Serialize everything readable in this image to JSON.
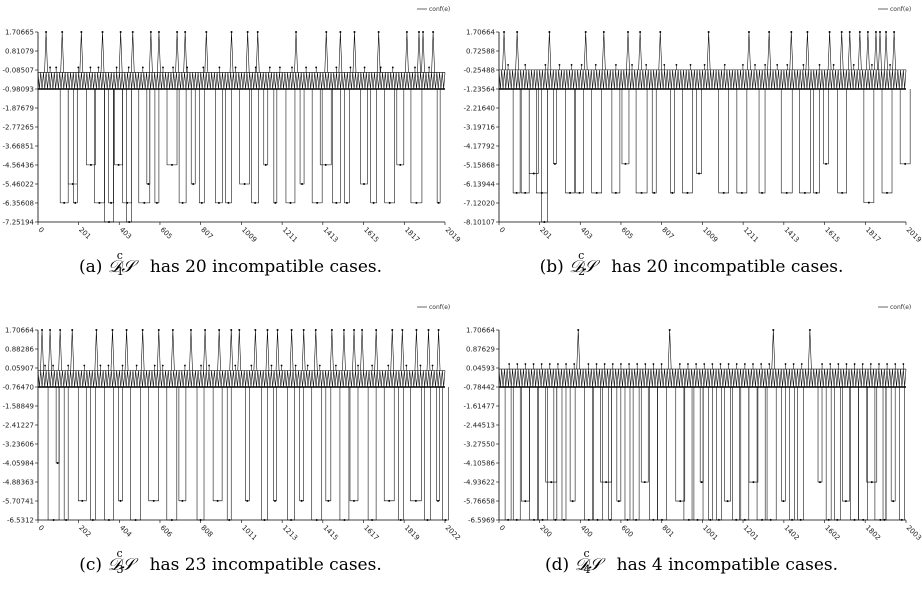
{
  "chart_data": [
    {
      "type": "line",
      "legend": "conf(e)",
      "legend_position": "top-right",
      "grid": false,
      "y_ticks": [
        "1.70665",
        "0.81079",
        "-0.08507",
        "-0.98093",
        "-1.87679",
        "-2.77265",
        "-3.66851",
        "-4.56436",
        "-5.46022",
        "-6.35608",
        "-7.25194"
      ],
      "ylim": [
        -7.25194,
        1.70665
      ],
      "x_ticks": [
        "0",
        "201",
        "403",
        "605",
        "807",
        "1009",
        "1211",
        "1413",
        "1615",
        "1817",
        "2019"
      ],
      "xlim": [
        0,
        2019
      ],
      "level_high": 1.70665,
      "band_top": -0.2,
      "band_bottom": -0.98093,
      "spikes_up": [
        40,
        120,
        215,
        320,
        410,
        470,
        560,
        600,
        690,
        730,
        835,
        960,
        1040,
        1090,
        1280,
        1430,
        1500,
        1570,
        1690,
        1830,
        1890,
        1910,
        1960
      ],
      "spikes_down": [
        {
          "x": 110,
          "y": -6.35
        },
        {
          "x": 150,
          "y": -5.46
        },
        {
          "x": 175,
          "y": -6.35
        },
        {
          "x": 240,
          "y": -4.56
        },
        {
          "x": 280,
          "y": -6.35
        },
        {
          "x": 330,
          "y": -7.25
        },
        {
          "x": 350,
          "y": -6.35
        },
        {
          "x": 380,
          "y": -4.56
        },
        {
          "x": 420,
          "y": -6.35
        },
        {
          "x": 440,
          "y": -7.25
        },
        {
          "x": 500,
          "y": -6.35
        },
        {
          "x": 540,
          "y": -5.46
        },
        {
          "x": 580,
          "y": -6.35
        },
        {
          "x": 640,
          "y": -4.56
        },
        {
          "x": 700,
          "y": -6.35
        },
        {
          "x": 760,
          "y": -5.46
        },
        {
          "x": 800,
          "y": -6.35
        },
        {
          "x": 880,
          "y": -6.35
        },
        {
          "x": 930,
          "y": -6.35
        },
        {
          "x": 1000,
          "y": -5.46
        },
        {
          "x": 1060,
          "y": -6.35
        },
        {
          "x": 1120,
          "y": -4.56
        },
        {
          "x": 1170,
          "y": -6.35
        },
        {
          "x": 1230,
          "y": -6.35
        },
        {
          "x": 1300,
          "y": -5.46
        },
        {
          "x": 1360,
          "y": -6.35
        },
        {
          "x": 1400,
          "y": -4.56
        },
        {
          "x": 1460,
          "y": -6.35
        },
        {
          "x": 1520,
          "y": -6.35
        },
        {
          "x": 1600,
          "y": -5.46
        },
        {
          "x": 1650,
          "y": -6.35
        },
        {
          "x": 1720,
          "y": -6.35
        },
        {
          "x": 1780,
          "y": -4.56
        },
        {
          "x": 1850,
          "y": -6.35
        },
        {
          "x": 1980,
          "y": -6.35
        }
      ],
      "spikes_mid": [
        60,
        90,
        200,
        260,
        300,
        390,
        450,
        520,
        620,
        670,
        740,
        820,
        900,
        980,
        1080,
        1150,
        1200,
        1260,
        1330,
        1380,
        1480,
        1550,
        1620,
        1700,
        1760,
        1870,
        1940
      ]
    },
    {
      "type": "line",
      "legend": "conf(e)",
      "legend_position": "top-right",
      "grid": false,
      "y_ticks": [
        "1.70664",
        "0.72588",
        "-0.25488",
        "-1.23564",
        "-2.21640",
        "-3.19716",
        "-4.17792",
        "-5.15868",
        "-6.13944",
        "-7.12020",
        "-8.10107"
      ],
      "ylim": [
        -8.10107,
        1.70664
      ],
      "x_ticks": [
        "0",
        "201",
        "403",
        "605",
        "807",
        "1009",
        "1211",
        "1413",
        "1615",
        "1817",
        "2019"
      ],
      "xlim": [
        0,
        2019
      ],
      "level_high": 1.70664,
      "band_top": -0.25,
      "band_bottom": -1.23564,
      "spikes_up": [
        25,
        90,
        250,
        430,
        520,
        640,
        700,
        800,
        1040,
        1240,
        1340,
        1450,
        1530,
        1640,
        1700,
        1740,
        1790,
        1830,
        1870,
        1890,
        1920,
        1960
      ],
      "spikes_down": [
        {
          "x": 70,
          "y": -6.6
        },
        {
          "x": 110,
          "y": -6.6
        },
        {
          "x": 150,
          "y": -5.6
        },
        {
          "x": 185,
          "y": -6.6
        },
        {
          "x": 210,
          "y": -8.1
        },
        {
          "x": 270,
          "y": -5.1
        },
        {
          "x": 330,
          "y": -6.6
        },
        {
          "x": 380,
          "y": -6.6
        },
        {
          "x": 460,
          "y": -6.6
        },
        {
          "x": 560,
          "y": -6.6
        },
        {
          "x": 610,
          "y": -5.1
        },
        {
          "x": 680,
          "y": -6.6
        },
        {
          "x": 760,
          "y": -6.6
        },
        {
          "x": 850,
          "y": -6.6
        },
        {
          "x": 910,
          "y": -6.6
        },
        {
          "x": 980,
          "y": -5.6
        },
        {
          "x": 1090,
          "y": -6.6
        },
        {
          "x": 1180,
          "y": -6.6
        },
        {
          "x": 1290,
          "y": -6.6
        },
        {
          "x": 1400,
          "y": -6.6
        },
        {
          "x": 1490,
          "y": -6.6
        },
        {
          "x": 1560,
          "y": -6.6
        },
        {
          "x": 1610,
          "y": -5.1
        },
        {
          "x": 1680,
          "y": -6.6
        },
        {
          "x": 1810,
          "y": -7.1
        },
        {
          "x": 1900,
          "y": -6.6
        },
        {
          "x": 1990,
          "y": -5.1
        }
      ],
      "spikes_mid": [
        45,
        130,
        230,
        300,
        360,
        410,
        480,
        580,
        660,
        730,
        820,
        880,
        950,
        1020,
        1120,
        1210,
        1270,
        1320,
        1380,
        1430,
        1510,
        1590,
        1660,
        1760,
        1850,
        1940
      ]
    },
    {
      "type": "line",
      "legend": "conf(e)",
      "legend_position": "top-right",
      "grid": false,
      "y_ticks": [
        "1.70664",
        "0.88286",
        "0.05907",
        "-0.76470",
        "-1.58849",
        "-2.41227",
        "-3.23606",
        "-4.05984",
        "-4.88363",
        "-5.70741",
        "-6.5312"
      ],
      "ylim": [
        -6.5312,
        1.70664
      ],
      "x_ticks": [
        "0",
        "202",
        "404",
        "606",
        "808",
        "1011",
        "1213",
        "1415",
        "1617",
        "1819",
        "2022"
      ],
      "xlim": [
        0,
        2022
      ],
      "level_high": 1.70664,
      "band_top": -0.05,
      "band_bottom": -0.7647,
      "spikes_up": [
        20,
        60,
        110,
        170,
        290,
        370,
        440,
        520,
        600,
        670,
        760,
        830,
        900,
        960,
        1000,
        1080,
        1140,
        1190,
        1260,
        1320,
        1380,
        1460,
        1520,
        1570,
        1610,
        1680,
        1760,
        1810,
        1880,
        1940,
        1990
      ],
      "spikes_down": [
        {
          "x": 50,
          "y": -6.53
        },
        {
          "x": 90,
          "y": -4.06
        },
        {
          "x": 130,
          "y": -6.53
        },
        {
          "x": 200,
          "y": -5.7
        },
        {
          "x": 260,
          "y": -6.53
        },
        {
          "x": 330,
          "y": -6.53
        },
        {
          "x": 400,
          "y": -5.7
        },
        {
          "x": 460,
          "y": -6.53
        },
        {
          "x": 550,
          "y": -5.7
        },
        {
          "x": 640,
          "y": -6.53
        },
        {
          "x": 700,
          "y": -5.7
        },
        {
          "x": 790,
          "y": -6.53
        },
        {
          "x": 870,
          "y": -5.7
        },
        {
          "x": 940,
          "y": -6.53
        },
        {
          "x": 1030,
          "y": -5.7
        },
        {
          "x": 1110,
          "y": -6.53
        },
        {
          "x": 1170,
          "y": -5.7
        },
        {
          "x": 1240,
          "y": -6.53
        },
        {
          "x": 1300,
          "y": -5.7
        },
        {
          "x": 1360,
          "y": -6.53
        },
        {
          "x": 1430,
          "y": -5.7
        },
        {
          "x": 1500,
          "y": -6.53
        },
        {
          "x": 1550,
          "y": -5.7
        },
        {
          "x": 1640,
          "y": -6.53
        },
        {
          "x": 1720,
          "y": -5.7
        },
        {
          "x": 1790,
          "y": -6.53
        },
        {
          "x": 1850,
          "y": -5.7
        },
        {
          "x": 1920,
          "y": -6.53
        },
        {
          "x": 1980,
          "y": -5.7
        },
        {
          "x": 2010,
          "y": -6.53
        }
      ],
      "spikes_mid": [
        35,
        75,
        150,
        230,
        310,
        350,
        420,
        490,
        580,
        620,
        730,
        810,
        850,
        980,
        1060,
        1160,
        1210,
        1280,
        1340,
        1400,
        1480,
        1590,
        1660,
        1740,
        1830,
        1900,
        1960
      ]
    },
    {
      "type": "line",
      "legend": "conf(e)",
      "legend_position": "top-right",
      "grid": false,
      "y_ticks": [
        "1.70664",
        "0.87629",
        "0.04593",
        "-0.78442",
        "-1.61477",
        "-2.44513",
        "-3.27550",
        "-4.10586",
        "-4.93622",
        "-5.76658",
        "-6.5969"
      ],
      "ylim": [
        -6.5969,
        1.70664
      ],
      "x_ticks": [
        "0",
        "200",
        "400",
        "600",
        "801",
        "1001",
        "1201",
        "1402",
        "1602",
        "1802",
        "2003"
      ],
      "xlim": [
        0,
        2003
      ],
      "level_high": 1.70664,
      "band_top": 0.0,
      "band_bottom": -0.78442,
      "spikes_up": [
        390,
        840,
        1350,
        1530
      ],
      "spikes_down": [
        {
          "x": 30,
          "y": -6.59
        },
        {
          "x": 70,
          "y": -6.59
        },
        {
          "x": 110,
          "y": -5.77
        },
        {
          "x": 150,
          "y": -6.59
        },
        {
          "x": 190,
          "y": -6.59
        },
        {
          "x": 230,
          "y": -4.94
        },
        {
          "x": 270,
          "y": -6.59
        },
        {
          "x": 310,
          "y": -6.59
        },
        {
          "x": 350,
          "y": -5.77
        },
        {
          "x": 420,
          "y": -6.59
        },
        {
          "x": 460,
          "y": -6.59
        },
        {
          "x": 500,
          "y": -4.94
        },
        {
          "x": 540,
          "y": -6.59
        },
        {
          "x": 580,
          "y": -5.77
        },
        {
          "x": 620,
          "y": -6.59
        },
        {
          "x": 660,
          "y": -6.59
        },
        {
          "x": 700,
          "y": -4.94
        },
        {
          "x": 740,
          "y": -6.59
        },
        {
          "x": 780,
          "y": -6.59
        },
        {
          "x": 870,
          "y": -5.77
        },
        {
          "x": 910,
          "y": -6.59
        },
        {
          "x": 950,
          "y": -6.59
        },
        {
          "x": 990,
          "y": -4.94
        },
        {
          "x": 1030,
          "y": -6.59
        },
        {
          "x": 1070,
          "y": -6.59
        },
        {
          "x": 1110,
          "y": -5.77
        },
        {
          "x": 1150,
          "y": -6.59
        },
        {
          "x": 1190,
          "y": -6.59
        },
        {
          "x": 1230,
          "y": -4.94
        },
        {
          "x": 1270,
          "y": -6.59
        },
        {
          "x": 1310,
          "y": -6.59
        },
        {
          "x": 1390,
          "y": -5.77
        },
        {
          "x": 1430,
          "y": -6.59
        },
        {
          "x": 1470,
          "y": -6.59
        },
        {
          "x": 1570,
          "y": -4.94
        },
        {
          "x": 1610,
          "y": -6.59
        },
        {
          "x": 1650,
          "y": -6.59
        },
        {
          "x": 1690,
          "y": -5.77
        },
        {
          "x": 1730,
          "y": -6.59
        },
        {
          "x": 1770,
          "y": -6.59
        },
        {
          "x": 1810,
          "y": -4.94
        },
        {
          "x": 1850,
          "y": -6.59
        },
        {
          "x": 1890,
          "y": -6.59
        },
        {
          "x": 1930,
          "y": -5.77
        },
        {
          "x": 1970,
          "y": -6.59
        }
      ],
      "spikes_mid": [
        50,
        90,
        130,
        170,
        210,
        250,
        290,
        330,
        370,
        440,
        480,
        520,
        560,
        600,
        640,
        680,
        720,
        760,
        800,
        890,
        930,
        970,
        1010,
        1050,
        1090,
        1130,
        1170,
        1210,
        1250,
        1290,
        1330,
        1410,
        1450,
        1490,
        1590,
        1630,
        1670,
        1710,
        1750,
        1790,
        1830,
        1870,
        1910,
        1950,
        1990
      ]
    }
  ],
  "captions": [
    {
      "prefix": "(a) ",
      "ds": "𝒟𝒮",
      "sup": "c",
      "sub": "1",
      "suffix": " has 20 incompatible cases."
    },
    {
      "prefix": "(b) ",
      "ds": "𝒟𝒮",
      "sup": "c",
      "sub": "2",
      "suffix": " has 20 incompatible cases."
    },
    {
      "prefix": "(c) ",
      "ds": "𝒟𝒮",
      "sup": "c",
      "sub": "3",
      "suffix": " has 23 incompatible cases."
    },
    {
      "prefix": "(d) ",
      "ds": "𝒟𝒮",
      "sup": "c",
      "sub": "4",
      "suffix": " has 4 incompatible cases."
    }
  ]
}
